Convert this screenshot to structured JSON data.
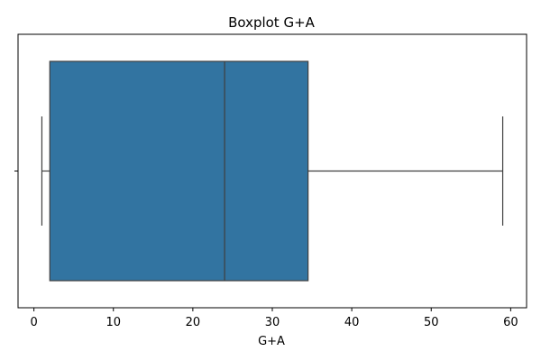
{
  "chart_data": {
    "type": "box",
    "title": "Boxplot G+A",
    "xlabel": "G+A",
    "ylabel": "",
    "orientation": "horizontal",
    "xlim": [
      -2,
      62
    ],
    "xticks": [
      0,
      10,
      20,
      30,
      40,
      50,
      60
    ],
    "grid": false,
    "series": [
      {
        "whisker_low": 1,
        "q1": 2,
        "median": 24,
        "q3": 34.5,
        "whisker_high": 59
      }
    ],
    "colors": {
      "box_fill": "#3274a1",
      "line": "#3f3f3f",
      "axes": "#000000"
    }
  }
}
